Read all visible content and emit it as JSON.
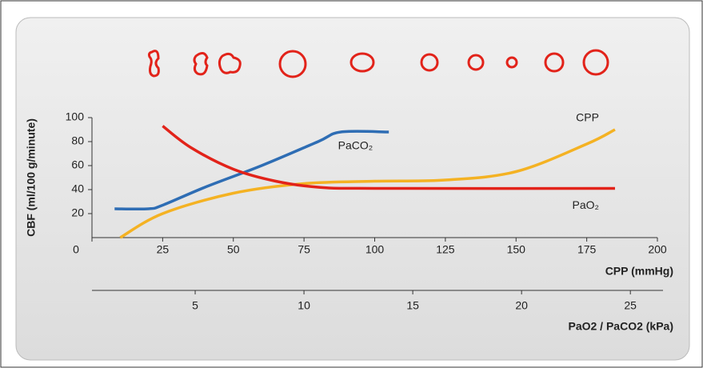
{
  "chart_data": {
    "type": "line",
    "y_label": "CBF (ml/100 g/minute)",
    "x_label": "CPP (mmHg)",
    "x2_label": "PaO2 / PaCO2 (kPa)",
    "xlim": [
      0,
      200
    ],
    "xticks": [
      0,
      25,
      50,
      75,
      100,
      125,
      150,
      175,
      200
    ],
    "ylim": [
      0,
      100
    ],
    "yticks": [
      20,
      40,
      60,
      80,
      100
    ],
    "x2lim": [
      0,
      26.5
    ],
    "x2ticks": [
      5,
      10,
      15,
      20,
      25
    ],
    "series": [
      {
        "name": "PaCO₂",
        "color": "#2e6db4",
        "x": [
          8,
          20,
          25,
          40,
          60,
          80,
          88,
          105
        ],
        "values": [
          24,
          24,
          27,
          42,
          60,
          80,
          88,
          88
        ]
      },
      {
        "name": "CPP",
        "color": "#f4b223",
        "x": [
          10,
          25,
          50,
          75,
          100,
          125,
          150,
          175,
          185
        ],
        "values": [
          0,
          20,
          37,
          45,
          47,
          48,
          55,
          78,
          90
        ]
      },
      {
        "name": "PaO₂",
        "color": "#e2231a",
        "x": [
          25,
          35,
          50,
          65,
          80,
          100,
          185
        ],
        "values": [
          93,
          75,
          57,
          47,
          42,
          41,
          41
        ]
      }
    ]
  }
}
